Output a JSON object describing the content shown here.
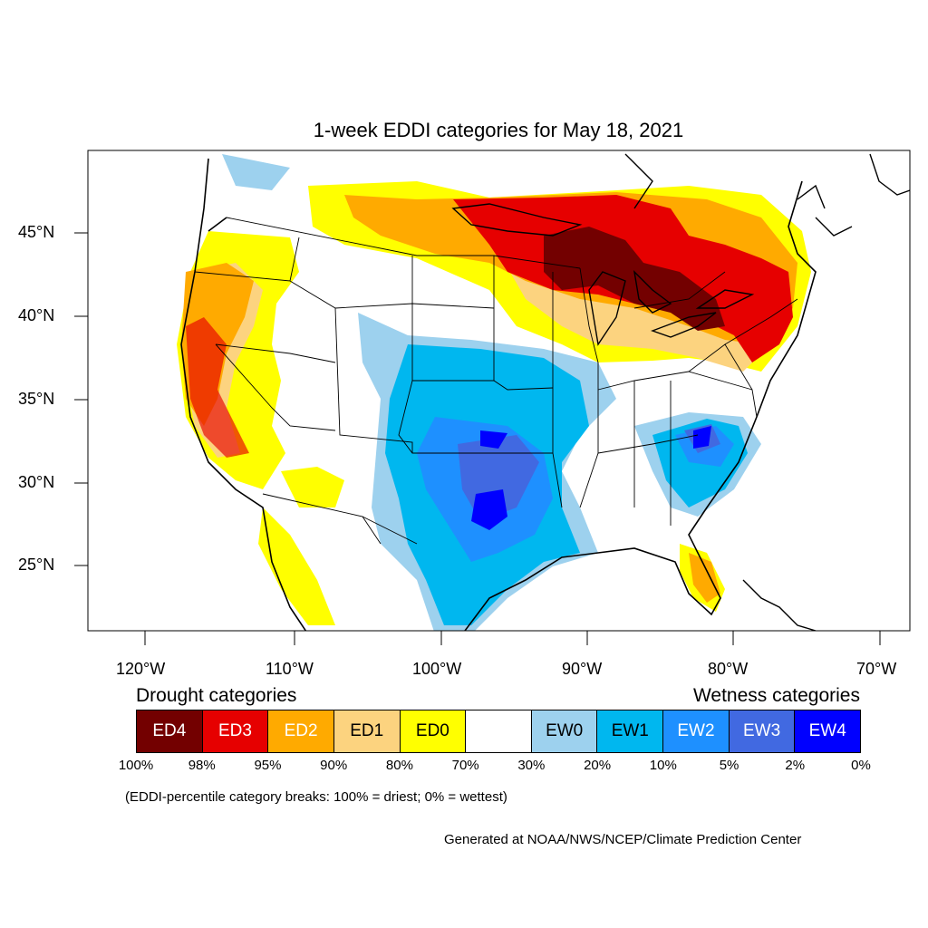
{
  "title": "1-week EDDI categories for May 18, 2021",
  "map_labels": {
    "lat": [
      "45°N",
      "40°N",
      "35°N",
      "30°N",
      "25°N"
    ],
    "lon": [
      "120°W",
      "110°W",
      "100°W",
      "90°W",
      "80°W",
      "70°W"
    ]
  },
  "legend": {
    "drought_header": "Drought categories",
    "wetness_header": "Wetness categories",
    "categories": [
      {
        "label": "ED4",
        "color": "#730000",
        "text_color": "#ffffff"
      },
      {
        "label": "ED3",
        "color": "#e60000",
        "text_color": "#ffffff"
      },
      {
        "label": "ED2",
        "color": "#ffaa00",
        "text_color": "#ffffff"
      },
      {
        "label": "ED1",
        "color": "#fcd37f",
        "text_color": "#000000"
      },
      {
        "label": "ED0",
        "color": "#ffff00",
        "text_color": "#000000"
      },
      {
        "label": "",
        "color": "#ffffff",
        "text_color": "#000000"
      },
      {
        "label": "EW0",
        "color": "#9dd1ee",
        "text_color": "#000000"
      },
      {
        "label": "EW1",
        "color": "#00b7ef",
        "text_color": "#000000"
      },
      {
        "label": "EW2",
        "color": "#1e90ff",
        "text_color": "#ffffff"
      },
      {
        "label": "EW3",
        "color": "#4169e1",
        "text_color": "#ffffff"
      },
      {
        "label": "EW4",
        "color": "#0000ff",
        "text_color": "#ffffff"
      }
    ],
    "breaks": [
      "100%",
      "98%",
      "95%",
      "90%",
      "80%",
      "70%",
      "30%",
      "20%",
      "10%",
      "5%",
      "2%",
      "0%"
    ]
  },
  "note": "(EDDI-percentile category breaks: 100% = driest; 0% = wettest)",
  "credit": "Generated at NOAA/NWS/NCEP/Climate Prediction Center"
}
